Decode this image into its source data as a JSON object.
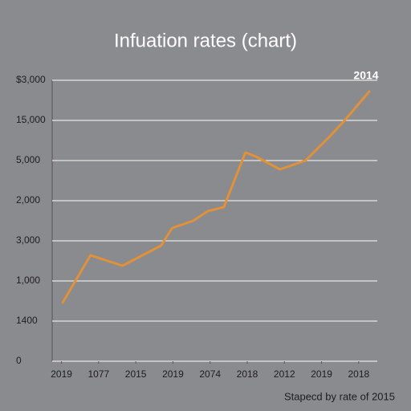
{
  "chart_data": {
    "type": "line",
    "title": "Infuation rates (chart)",
    "annotation": "2014",
    "footnote": "Stapecd by rate of 2015",
    "x": [
      0.02,
      0.78,
      1.64,
      2.68,
      2.98,
      3.55,
      3.94,
      4.37,
      4.95,
      5.23,
      5.88,
      6.57,
      7.22,
      7.66,
      8.3
    ],
    "values": [
      1.44,
      2.64,
      2.38,
      2.88,
      3.32,
      3.5,
      3.74,
      3.84,
      5.2,
      5.1,
      4.78,
      5.0,
      5.6,
      6.04,
      6.74
    ],
    "color": "#e0913a",
    "xlim": [
      -0.25,
      8.5
    ],
    "xticks": [
      {
        "value": 0,
        "label": "2019"
      },
      {
        "value": 1,
        "label": "1077"
      },
      {
        "value": 2,
        "label": "2015"
      },
      {
        "value": 3,
        "label": "2019"
      },
      {
        "value": 4,
        "label": "2074"
      },
      {
        "value": 5,
        "label": "2018"
      },
      {
        "value": 6,
        "label": "2012"
      },
      {
        "value": 7,
        "label": "2019"
      },
      {
        "value": 8,
        "label": "2018"
      }
    ],
    "ylim": [
      0,
      7
    ],
    "yticks": [
      {
        "value": 0,
        "label": "0"
      },
      {
        "value": 1,
        "label": "1400"
      },
      {
        "value": 2,
        "label": "1,000"
      },
      {
        "value": 3,
        "label": "3,000"
      },
      {
        "value": 4,
        "label": "2,000"
      },
      {
        "value": 5,
        "label": "5,000"
      },
      {
        "value": 6,
        "label": "15,000"
      },
      {
        "value": 7,
        "label": "$3,000"
      }
    ],
    "grid": true
  }
}
